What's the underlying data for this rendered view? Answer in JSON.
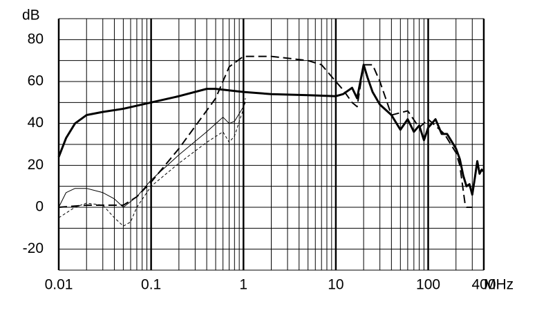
{
  "chart_data": {
    "type": "line",
    "x_log_scale": true,
    "x_unit": "MHz",
    "y_unit": "dB",
    "xlim": [
      0.01,
      400
    ],
    "ylim": [
      -30,
      90
    ],
    "xticks": [
      0.01,
      0.1,
      1,
      10,
      100,
      400
    ],
    "yticks": [
      -20,
      0,
      20,
      40,
      60,
      80
    ],
    "xgrid": [
      0.02,
      0.03,
      0.04,
      0.05,
      0.06,
      0.07,
      0.08,
      0.09,
      0.2,
      0.3,
      0.4,
      0.5,
      0.6,
      0.7,
      0.8,
      0.9,
      2,
      3,
      4,
      5,
      6,
      7,
      8,
      9,
      20,
      30,
      40,
      50,
      60,
      70,
      80,
      90,
      200,
      300
    ],
    "ygrid": [
      -30,
      -20,
      -10,
      0,
      10,
      20,
      30,
      40,
      50,
      60,
      70,
      80,
      90
    ],
    "series": [
      {
        "color": "#000000",
        "width": 3,
        "dash": "none",
        "x": [
          0.01,
          0.012,
          0.015,
          0.02,
          0.03,
          0.05,
          0.1,
          0.2,
          0.4,
          0.5,
          1,
          2,
          5,
          10,
          12,
          15,
          17,
          20,
          22,
          25,
          30,
          40,
          50,
          60,
          70,
          80,
          90,
          100,
          120,
          140,
          160,
          200,
          220,
          240,
          260,
          280,
          300,
          320,
          340,
          360,
          380,
          400
        ],
        "values": [
          24,
          33,
          40,
          44,
          45.5,
          47,
          50,
          53,
          56.5,
          56.5,
          55,
          54,
          53.5,
          53,
          54,
          57,
          52,
          68,
          62,
          55,
          49,
          44,
          37,
          42,
          36,
          39,
          32,
          38,
          42,
          35,
          35,
          28,
          23,
          15,
          10,
          11,
          6,
          14,
          22,
          16,
          18,
          17
        ]
      },
      {
        "color": "#000000",
        "width": 2,
        "dash": "12 6",
        "x": [
          0.01,
          0.02,
          0.05,
          0.07,
          0.1,
          0.2,
          0.5,
          0.7,
          1,
          2,
          5,
          7,
          10,
          12,
          15,
          17,
          20,
          25,
          30,
          40,
          60,
          80,
          100,
          150,
          200,
          220,
          250,
          260,
          300
        ],
        "values": [
          0,
          1,
          1,
          5,
          12,
          28,
          52,
          67,
          72,
          72,
          70,
          68,
          60,
          56,
          50,
          48,
          68,
          68,
          60,
          44,
          46,
          38,
          42,
          35,
          26,
          20,
          2,
          0,
          0
        ]
      },
      {
        "color": "#000000",
        "width": 1,
        "dash": "none",
        "x": [
          0.01,
          0.012,
          0.015,
          0.02,
          0.03,
          0.04,
          0.05,
          0.07,
          0.1,
          0.2,
          0.4,
          0.6,
          0.7,
          0.8,
          1,
          1.05
        ],
        "values": [
          0,
          7,
          9,
          9,
          7,
          4,
          0,
          5,
          13,
          25,
          36,
          43,
          40,
          41,
          48,
          50
        ]
      },
      {
        "color": "#000000",
        "width": 1,
        "dash": "4 3",
        "x": [
          0.01,
          0.015,
          0.02,
          0.03,
          0.04,
          0.05,
          0.06,
          0.07,
          0.1,
          0.2,
          0.4,
          0.6,
          0.7,
          0.8,
          1,
          1.05
        ],
        "values": [
          -5,
          0,
          2,
          1,
          -5,
          -9,
          -7,
          0,
          10,
          21,
          31,
          36,
          31,
          34,
          47,
          52
        ]
      }
    ]
  }
}
